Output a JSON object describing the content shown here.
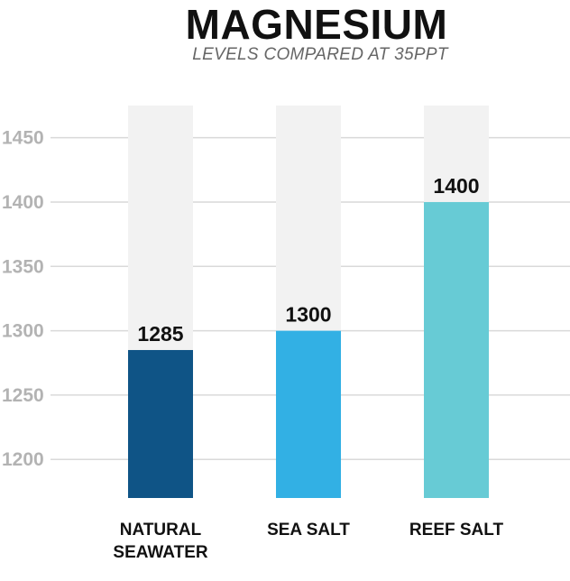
{
  "chart_data": {
    "type": "bar",
    "title": "MAGNESIUM",
    "subtitle": "LEVELS COMPARED AT 35PPT",
    "categories": [
      [
        "NATURAL",
        "SEAWATER"
      ],
      [
        "SEA SALT"
      ],
      [
        "REEF SALT"
      ]
    ],
    "values": [
      1285,
      1300,
      1400
    ],
    "ylim": [
      1170,
      1475
    ],
    "yticks": [
      1200,
      1250,
      1300,
      1350,
      1400,
      1450
    ],
    "grid": true,
    "legend": "none",
    "colors": {
      "bars": [
        "#0f5486",
        "#32b0e4",
        "#67cbd5"
      ],
      "bar_background": "#f2f2f2",
      "grid": "#d9d9d9",
      "tick_text": "#b3b3b3"
    }
  }
}
